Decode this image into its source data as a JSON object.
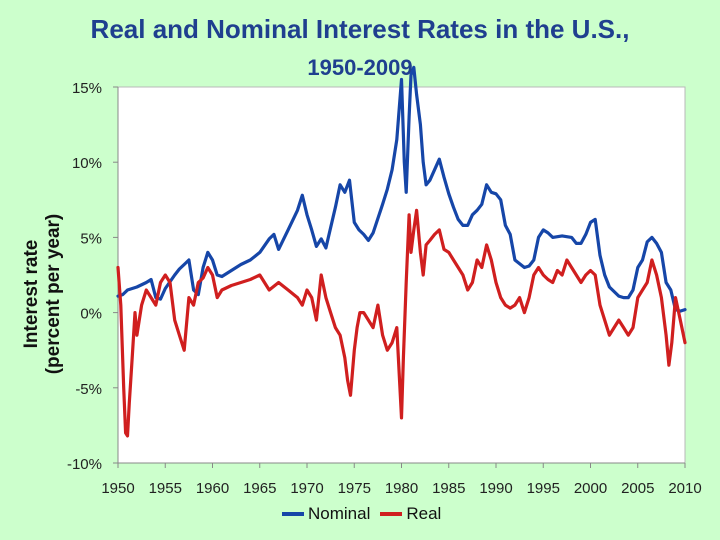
{
  "chart_data": {
    "type": "line",
    "title": "Real and Nominal Interest Rates in the U.S.,",
    "subtitle": "1950-2009",
    "ylabel_line1": "Interest rate",
    "ylabel_line2": "(percent per year)",
    "xlabel": "",
    "xlim": [
      1950,
      2010
    ],
    "ylim": [
      -10,
      15
    ],
    "xticks": [
      1950,
      1955,
      1960,
      1965,
      1970,
      1975,
      1980,
      1985,
      1990,
      1995,
      2000,
      2005,
      2010
    ],
    "yticks": [
      -10,
      -5,
      0,
      5,
      10,
      15
    ],
    "ytick_labels": [
      "-10%",
      "-5%",
      "0%",
      "5%",
      "10%",
      "15%"
    ],
    "grid": false,
    "legend_position": "bottom",
    "series": [
      {
        "name": "Nominal",
        "color": "#1646a8",
        "x": [
          1950,
          1950.5,
          1951,
          1951.5,
          1952,
          1953,
          1953.5,
          1954,
          1954.5,
          1955,
          1956,
          1956.5,
          1957,
          1957.5,
          1958,
          1958.5,
          1959,
          1959.5,
          1960,
          1960.5,
          1961,
          1962,
          1963,
          1964,
          1965,
          1966,
          1966.5,
          1967,
          1968,
          1969,
          1969.5,
          1970,
          1970.5,
          1971,
          1971.5,
          1972,
          1973,
          1973.5,
          1974,
          1974.5,
          1975,
          1975.5,
          1976,
          1976.5,
          1977,
          1978,
          1978.5,
          1979,
          1979.5,
          1980,
          1980.3,
          1980.5,
          1980.8,
          1981,
          1981.3,
          1981.6,
          1982,
          1982.3,
          1982.6,
          1983,
          1983.5,
          1984,
          1984.5,
          1985,
          1985.5,
          1986,
          1986.5,
          1987,
          1987.5,
          1988,
          1988.5,
          1989,
          1989.5,
          1990,
          1990.5,
          1991,
          1991.5,
          1992,
          1993,
          1993.5,
          1994,
          1994.5,
          1995,
          1995.5,
          1996,
          1997,
          1998,
          1998.5,
          1999,
          1999.5,
          2000,
          2000.5,
          2001,
          2001.5,
          2002,
          2003,
          2003.5,
          2004,
          2004.5,
          2005,
          2005.5,
          2006,
          2006.5,
          2007,
          2007.5,
          2008,
          2008.5,
          2009,
          2009.5,
          2010
        ],
        "y": [
          1.1,
          1.2,
          1.5,
          1.6,
          1.7,
          2.0,
          2.2,
          1.0,
          0.9,
          1.6,
          2.5,
          2.9,
          3.2,
          3.5,
          1.5,
          1.2,
          3.0,
          4.0,
          3.5,
          2.5,
          2.4,
          2.8,
          3.2,
          3.5,
          4.0,
          4.9,
          5.2,
          4.2,
          5.5,
          6.8,
          7.8,
          6.5,
          5.5,
          4.4,
          4.9,
          4.3,
          7.0,
          8.5,
          8.0,
          8.8,
          6.0,
          5.5,
          5.2,
          4.8,
          5.3,
          7.2,
          8.2,
          9.5,
          11.5,
          15.5,
          10.0,
          8.0,
          13.0,
          15.8,
          16.3,
          14.5,
          12.5,
          10.0,
          8.5,
          8.8,
          9.5,
          10.2,
          9.0,
          7.9,
          7.0,
          6.2,
          5.8,
          5.8,
          6.5,
          6.8,
          7.2,
          8.5,
          8.0,
          7.9,
          7.5,
          5.8,
          5.2,
          3.5,
          3.0,
          3.1,
          3.5,
          5.0,
          5.5,
          5.3,
          5.0,
          5.1,
          5.0,
          4.6,
          4.6,
          5.2,
          6.0,
          6.2,
          3.8,
          2.5,
          1.7,
          1.1,
          1.0,
          1.0,
          1.5,
          3.0,
          3.5,
          4.7,
          5.0,
          4.6,
          4.0,
          2.0,
          1.5,
          0.2,
          0.1,
          0.2
        ]
      },
      {
        "name": "Real",
        "color": "#d01f1f",
        "x": [
          1950,
          1950.3,
          1950.6,
          1950.8,
          1951,
          1951.2,
          1951.5,
          1951.8,
          1952,
          1952.5,
          1953,
          1953.5,
          1954,
          1954.5,
          1955,
          1955.5,
          1956,
          1956.5,
          1957,
          1957.5,
          1958,
          1958.5,
          1959,
          1959.5,
          1960,
          1960.5,
          1961,
          1962,
          1963,
          1964,
          1965,
          1966,
          1967,
          1968,
          1969,
          1969.5,
          1970,
          1970.5,
          1971,
          1971.5,
          1972,
          1972.5,
          1973,
          1973.5,
          1974,
          1974.3,
          1974.6,
          1975,
          1975.3,
          1975.6,
          1976,
          1976.5,
          1977,
          1977.5,
          1978,
          1978.5,
          1979,
          1979.5,
          1980,
          1980.2,
          1980.5,
          1980.8,
          1981,
          1981.3,
          1981.6,
          1982,
          1982.3,
          1982.6,
          1983,
          1983.5,
          1984,
          1984.5,
          1985,
          1985.5,
          1986,
          1986.5,
          1987,
          1987.5,
          1988,
          1988.5,
          1989,
          1989.5,
          1990,
          1990.5,
          1991,
          1991.5,
          1992,
          1992.5,
          1993,
          1993.5,
          1994,
          1994.5,
          1995,
          1995.5,
          1996,
          1996.5,
          1997,
          1997.5,
          1998,
          1998.5,
          1999,
          1999.5,
          2000,
          2000.5,
          2001,
          2001.5,
          2002,
          2002.5,
          2003,
          2003.5,
          2004,
          2004.5,
          2005,
          2005.5,
          2006,
          2006.5,
          2007,
          2007.5,
          2008,
          2008.3,
          2008.6,
          2009,
          2009.5,
          2010
        ],
        "y": [
          3.0,
          0.5,
          -5.0,
          -8.0,
          -8.2,
          -6.0,
          -3.0,
          0.0,
          -1.5,
          0.5,
          1.5,
          1.0,
          0.5,
          2.0,
          2.5,
          2.0,
          -0.5,
          -1.5,
          -2.5,
          1.0,
          0.5,
          2.0,
          2.3,
          3.0,
          2.5,
          1.0,
          1.5,
          1.8,
          2.0,
          2.2,
          2.5,
          1.5,
          2.0,
          1.5,
          1.0,
          0.5,
          1.5,
          1.0,
          -0.5,
          2.5,
          1.0,
          0.0,
          -1.0,
          -1.5,
          -3.0,
          -4.5,
          -5.5,
          -2.5,
          -1.0,
          0.0,
          0.0,
          -0.5,
          -1.0,
          0.5,
          -1.5,
          -2.5,
          -2.0,
          -1.0,
          -7.0,
          -3.0,
          2.0,
          6.5,
          4.0,
          5.5,
          6.8,
          4.0,
          2.5,
          4.5,
          4.8,
          5.2,
          5.5,
          4.2,
          4.0,
          3.5,
          3.0,
          2.5,
          1.5,
          2.0,
          3.5,
          3.0,
          4.5,
          3.5,
          2.0,
          1.0,
          0.5,
          0.3,
          0.5,
          1.0,
          0.0,
          1.0,
          2.5,
          3.0,
          2.5,
          2.2,
          2.0,
          2.8,
          2.5,
          3.5,
          3.0,
          2.5,
          2.0,
          2.5,
          2.8,
          2.5,
          0.5,
          -0.5,
          -1.5,
          -1.0,
          -0.5,
          -1.0,
          -1.5,
          -1.0,
          1.0,
          1.5,
          2.0,
          3.5,
          2.5,
          1.0,
          -1.5,
          -3.5,
          -2.0,
          1.0,
          -0.5,
          -2.0
        ]
      }
    ]
  }
}
